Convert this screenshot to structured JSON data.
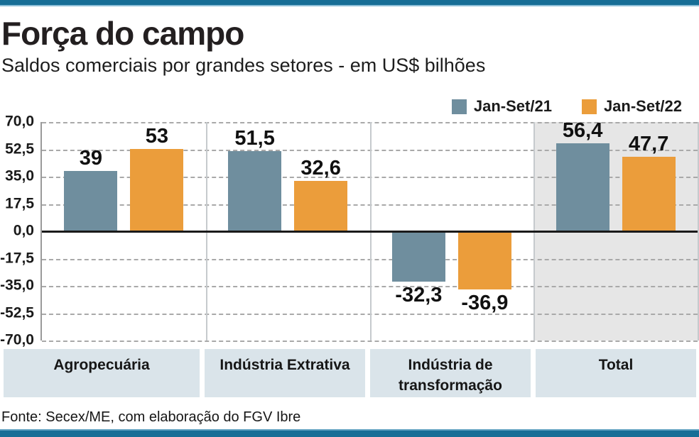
{
  "page": {
    "title": "Força do campo",
    "subtitle": "Saldos comerciais por grandes setores - em US$ bilhões",
    "source": "Fonte: Secex/ME, com elaboração do FGV Ibre"
  },
  "legend": {
    "items": [
      {
        "label": "Jan-Set/21",
        "color": "#6f8e9e"
      },
      {
        "label": "Jan-Set/22",
        "color": "#eb9d3b"
      }
    ]
  },
  "chart_data": {
    "type": "bar",
    "title": "Força do campo",
    "subtitle": "Saldos comerciais por grandes setores - em US$ bilhões",
    "unit": "US$ bilhões",
    "categories": [
      "Agropecuária",
      "Indústria Extrativa",
      "Indústria de transformação",
      "Total"
    ],
    "series": [
      {
        "name": "Jan-Set/21",
        "color": "#6f8e9e",
        "values": [
          39,
          51.5,
          -32.3,
          56.4
        ],
        "value_labels": [
          "39",
          "51,5",
          "-32,3",
          "56,4"
        ]
      },
      {
        "name": "Jan-Set/22",
        "color": "#eb9d3b",
        "values": [
          53,
          32.6,
          -36.9,
          47.7
        ],
        "value_labels": [
          "53",
          "32,6",
          "-36,9",
          "47,7"
        ]
      }
    ],
    "ylim": [
      -70,
      70
    ],
    "y_ticks": [
      70,
      52.5,
      35,
      17.5,
      0,
      -17.5,
      -35,
      -52.5,
      -70
    ],
    "y_tick_labels": [
      "70,0",
      "52,5",
      "35,0",
      "17,5",
      "0,0",
      "-17,5",
      "-35,0",
      "-52,5",
      "-70,0"
    ],
    "grid": "horizontal-dashed",
    "legend_position": "top-right",
    "highlighted_category": "Total",
    "highlight_color": "#e6e6e6"
  },
  "colors": {
    "brand_bar": "#176e96",
    "series1": "#6f8e9e",
    "series2": "#eb9d3b",
    "category_box_bg": "#dae4ea",
    "highlight_bg": "#e6e6e6"
  }
}
